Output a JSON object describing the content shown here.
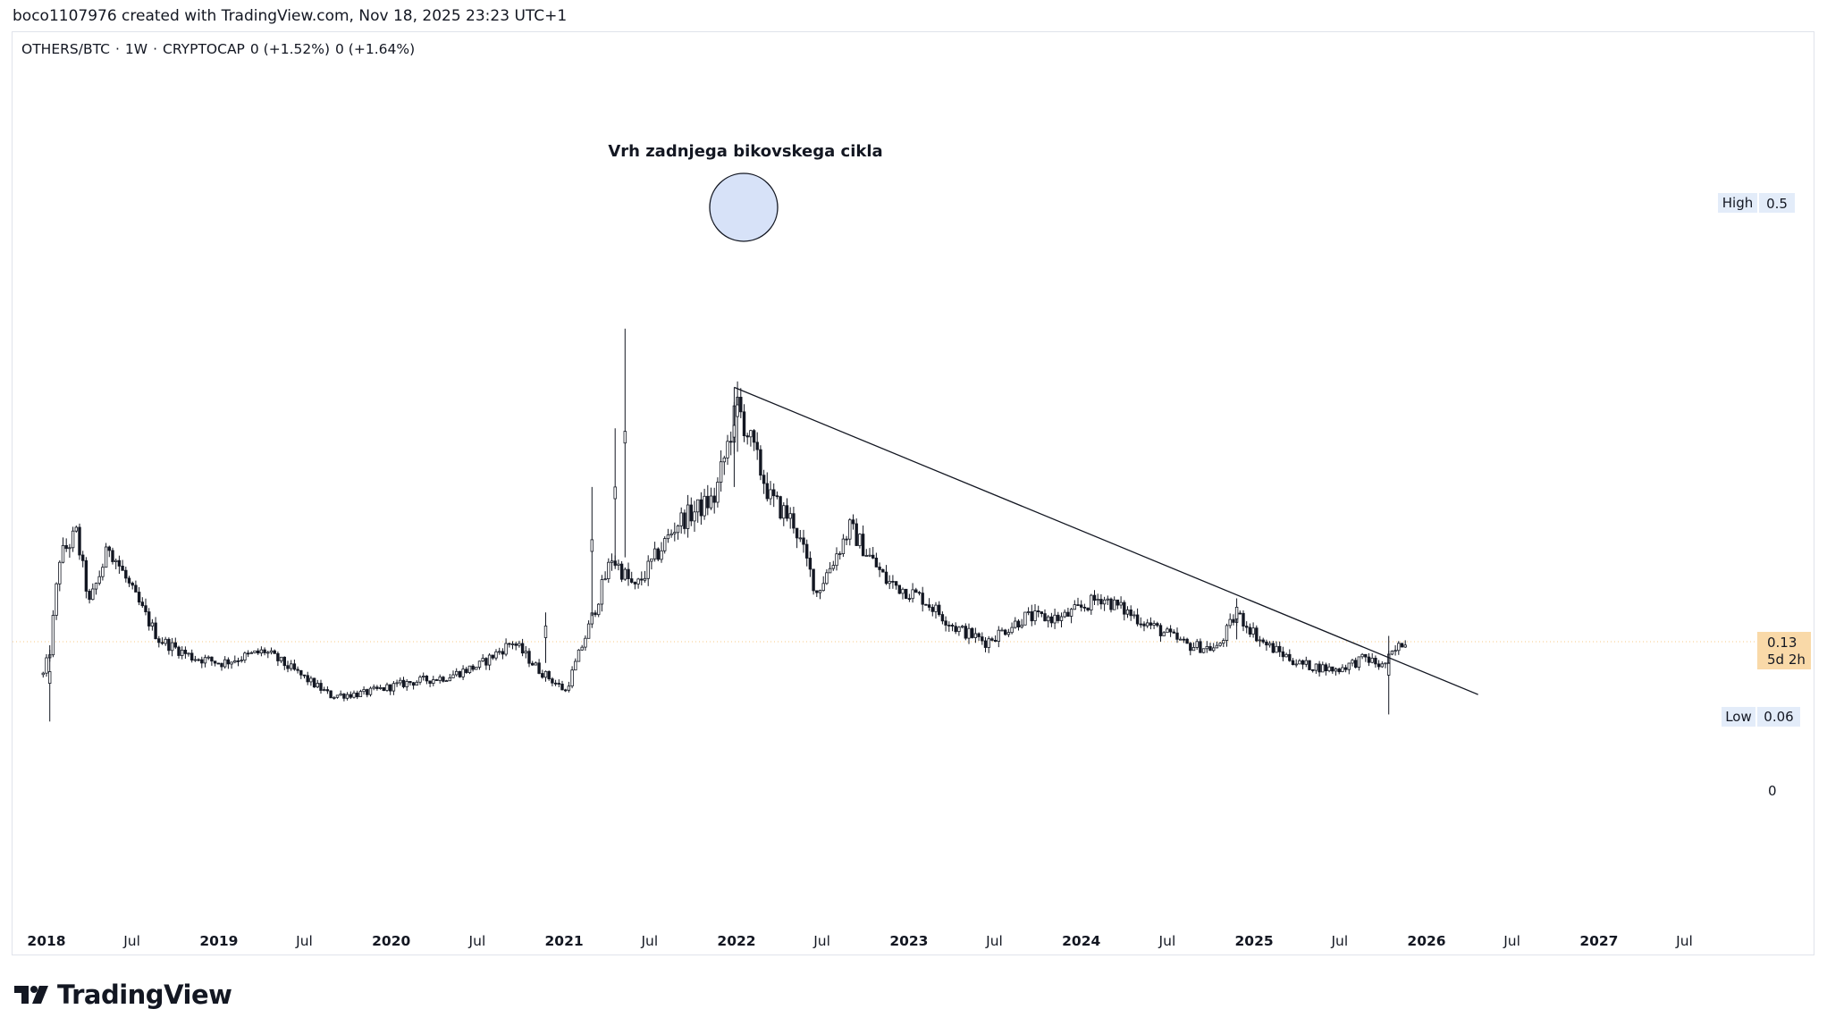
{
  "header": {
    "attribution": "boco1107976 created with TradingView.com, Nov 18, 2025 23:23 UTC+1"
  },
  "legend": {
    "symbol": "OTHERS/BTC",
    "sep1": "·",
    "interval": "1W",
    "sep2": "·",
    "exchange": "CRYPTOCAP",
    "change1": "0 (+1.52%)",
    "change2": "0 (+1.64%)"
  },
  "annotation": {
    "text": "Vrh zadnjega bikovskega cikla"
  },
  "price_scale": {
    "high_label": "High",
    "high_value": "0.5",
    "current_value": "0.13",
    "countdown": "5d 2h",
    "low_label": "Low",
    "low_value": "0.06",
    "zero": "0"
  },
  "footer": {
    "brand": "TradingView"
  },
  "colors": {
    "candle": "#131722",
    "circle_fill": "#c9d8f5",
    "current_badge": "#f9d9a8",
    "high_low_badge": "#e3ecf9",
    "trendline": "#131722"
  },
  "chart_data": {
    "type": "candlestick",
    "interval": "1W",
    "symbol": "OTHERS/BTC",
    "x_tick_labels": [
      "2018",
      "Jul",
      "2019",
      "Jul",
      "2020",
      "Jul",
      "2021",
      "Jul",
      "2022",
      "Jul",
      "2023",
      "Jul",
      "2024",
      "Jul",
      "2025",
      "Jul",
      "2026",
      "Jul",
      "2027",
      "Jul"
    ],
    "ylim": [
      0,
      0.5
    ],
    "series_anchor_points": [
      [
        "2017-12-25",
        0.1
      ],
      [
        "2018-01-08",
        0.12
      ],
      [
        "2018-01-29",
        0.2
      ],
      [
        "2018-03-05",
        0.22
      ],
      [
        "2018-04-02",
        0.16
      ],
      [
        "2018-05-14",
        0.21
      ],
      [
        "2018-07-02",
        0.17
      ],
      [
        "2018-08-27",
        0.13
      ],
      [
        "2018-11-05",
        0.115
      ],
      [
        "2019-01-07",
        0.11
      ],
      [
        "2019-04-08",
        0.12
      ],
      [
        "2019-06-03",
        0.105
      ],
      [
        "2019-08-26",
        0.082
      ],
      [
        "2019-11-04",
        0.084
      ],
      [
        "2020-02-03",
        0.093
      ],
      [
        "2020-04-27",
        0.098
      ],
      [
        "2020-07-06",
        0.108
      ],
      [
        "2020-09-14",
        0.128
      ],
      [
        "2020-11-09",
        0.104
      ],
      [
        "2021-01-04",
        0.086
      ],
      [
        "2021-02-22",
        0.14
      ],
      [
        "2021-04-12",
        0.2
      ],
      [
        "2021-05-31",
        0.173
      ],
      [
        "2021-08-30",
        0.23
      ],
      [
        "2021-11-15",
        0.25
      ],
      [
        "2022-01-03",
        0.33
      ],
      [
        "2022-03-14",
        0.25
      ],
      [
        "2022-05-02",
        0.23
      ],
      [
        "2022-06-20",
        0.17
      ],
      [
        "2022-08-29",
        0.225
      ],
      [
        "2022-11-14",
        0.18
      ],
      [
        "2023-01-30",
        0.165
      ],
      [
        "2023-04-10",
        0.14
      ],
      [
        "2023-06-12",
        0.128
      ],
      [
        "2023-09-04",
        0.149
      ],
      [
        "2023-11-20",
        0.148
      ],
      [
        "2024-02-12",
        0.166
      ],
      [
        "2024-05-13",
        0.145
      ],
      [
        "2024-08-12",
        0.125
      ],
      [
        "2024-10-14",
        0.122
      ],
      [
        "2024-11-25",
        0.152
      ],
      [
        "2025-01-20",
        0.127
      ],
      [
        "2025-04-07",
        0.109
      ],
      [
        "2025-06-23",
        0.104
      ],
      [
        "2025-08-25",
        0.114
      ],
      [
        "2025-09-29",
        0.107
      ],
      [
        "2025-11-17",
        0.13
      ]
    ],
    "trendline": {
      "from": [
        "2021-12-27",
        0.345
      ],
      "to": [
        "2026-04-20",
        0.083
      ]
    },
    "marked_extremes": {
      "high": 0.5,
      "low": 0.06,
      "last": 0.13
    }
  }
}
